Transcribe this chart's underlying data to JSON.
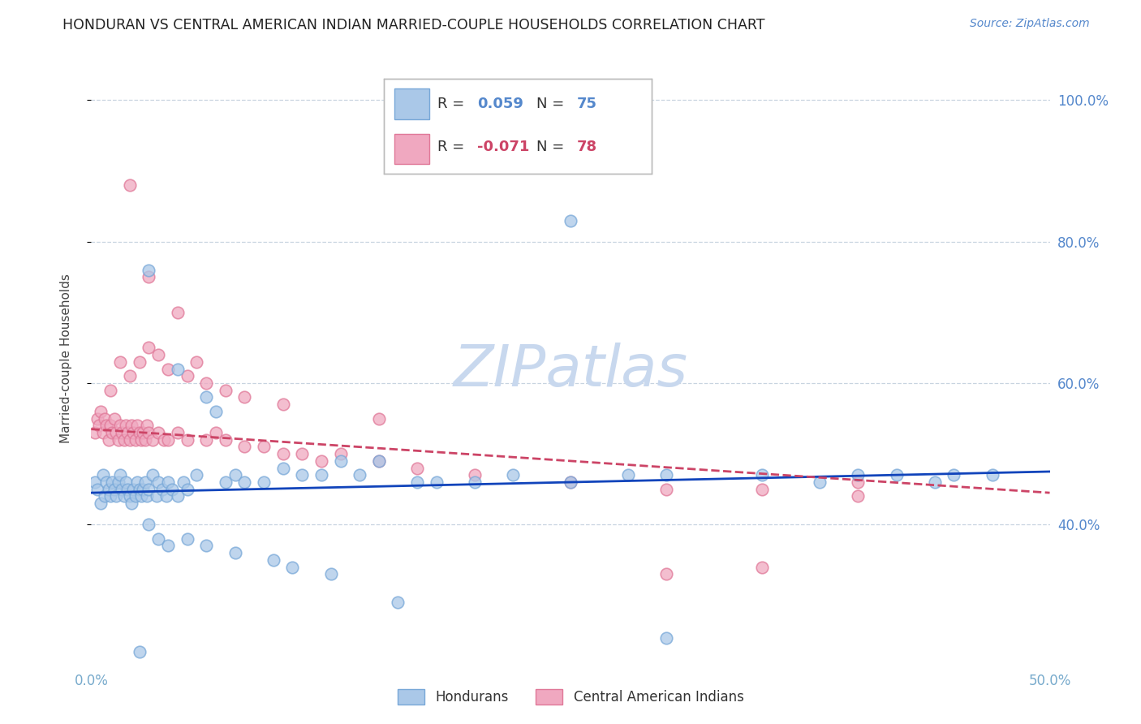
{
  "title": "HONDURAN VS CENTRAL AMERICAN INDIAN MARRIED-COUPLE HOUSEHOLDS CORRELATION CHART",
  "source": "Source: ZipAtlas.com",
  "ylabel": "Married-couple Households",
  "xlim": [
    0.0,
    50.0
  ],
  "ylim": [
    20.0,
    107.0
  ],
  "yticks": [
    40.0,
    60.0,
    80.0,
    100.0
  ],
  "ytick_right_labels": [
    "40.0%",
    "60.0%",
    "80.0%",
    "100.0%"
  ],
  "honduran_color_fill": "#aac8e8",
  "honduran_color_edge": "#78a8d8",
  "cai_color_fill": "#f0a8c0",
  "cai_color_edge": "#e07898",
  "trend_honduran_color": "#1144bb",
  "trend_cai_color": "#cc4466",
  "watermark_color": "#c8d8ee",
  "background_color": "#ffffff",
  "grid_color": "#c8d4e0",
  "axis_label_color": "#77aacc",
  "right_tick_color": "#5588cc",
  "marker_size": 110,
  "honduran_x": [
    0.2,
    0.3,
    0.5,
    0.6,
    0.7,
    0.8,
    0.9,
    1.0,
    1.1,
    1.2,
    1.3,
    1.4,
    1.5,
    1.6,
    1.7,
    1.8,
    1.9,
    2.0,
    2.1,
    2.2,
    2.3,
    2.4,
    2.5,
    2.6,
    2.7,
    2.8,
    2.9,
    3.0,
    3.2,
    3.4,
    3.5,
    3.7,
    3.9,
    4.0,
    4.2,
    4.5,
    4.8,
    5.0,
    5.5,
    6.0,
    6.5,
    7.0,
    7.5,
    8.0,
    9.0,
    10.0,
    11.0,
    12.0,
    13.0,
    14.0,
    15.0,
    17.0,
    18.0,
    20.0,
    22.0,
    25.0,
    28.0,
    30.0,
    35.0,
    38.0,
    40.0,
    42.0,
    44.0,
    45.0,
    47.0,
    3.0,
    3.5,
    4.0,
    5.0,
    6.0,
    7.5,
    9.5,
    10.5,
    12.5,
    16.0
  ],
  "honduran_y": [
    46.0,
    45.0,
    43.0,
    47.0,
    44.0,
    46.0,
    45.0,
    44.0,
    46.0,
    45.0,
    44.0,
    46.0,
    47.0,
    45.0,
    44.0,
    46.0,
    45.0,
    44.0,
    43.0,
    45.0,
    44.0,
    46.0,
    45.0,
    44.0,
    45.0,
    46.0,
    44.0,
    45.0,
    47.0,
    44.0,
    46.0,
    45.0,
    44.0,
    46.0,
    45.0,
    44.0,
    46.0,
    45.0,
    47.0,
    58.0,
    56.0,
    46.0,
    47.0,
    46.0,
    46.0,
    48.0,
    47.0,
    47.0,
    49.0,
    47.0,
    49.0,
    46.0,
    46.0,
    46.0,
    47.0,
    46.0,
    47.0,
    47.0,
    47.0,
    46.0,
    47.0,
    47.0,
    46.0,
    47.0,
    47.0,
    40.0,
    38.0,
    37.0,
    38.0,
    37.0,
    36.0,
    35.0,
    34.0,
    33.0,
    29.0
  ],
  "honduran_y_outliers_x": [
    3.0,
    4.5,
    25.0,
    30.0,
    2.5
  ],
  "honduran_y_outliers_y": [
    76.0,
    62.0,
    83.0,
    24.0,
    22.0
  ],
  "cai_x": [
    0.2,
    0.3,
    0.4,
    0.5,
    0.6,
    0.7,
    0.8,
    0.9,
    1.0,
    1.1,
    1.2,
    1.3,
    1.4,
    1.5,
    1.6,
    1.7,
    1.8,
    1.9,
    2.0,
    2.1,
    2.2,
    2.3,
    2.4,
    2.5,
    2.6,
    2.7,
    2.8,
    2.9,
    3.0,
    3.2,
    3.5,
    3.8,
    4.0,
    4.5,
    5.0,
    5.5,
    6.0,
    6.5,
    7.0,
    8.0,
    9.0,
    10.0,
    11.0,
    12.0,
    13.0,
    15.0,
    17.0,
    20.0,
    25.0,
    30.0,
    35.0,
    40.0,
    1.0,
    1.5,
    2.0,
    2.5,
    3.0,
    3.5,
    4.0,
    5.0,
    6.0,
    7.0,
    8.0,
    10.0,
    15.0
  ],
  "cai_y": [
    53.0,
    55.0,
    54.0,
    56.0,
    53.0,
    55.0,
    54.0,
    52.0,
    54.0,
    53.0,
    55.0,
    53.0,
    52.0,
    54.0,
    53.0,
    52.0,
    54.0,
    53.0,
    52.0,
    54.0,
    53.0,
    52.0,
    54.0,
    53.0,
    52.0,
    53.0,
    52.0,
    54.0,
    53.0,
    52.0,
    53.0,
    52.0,
    52.0,
    53.0,
    52.0,
    63.0,
    52.0,
    53.0,
    52.0,
    51.0,
    51.0,
    50.0,
    50.0,
    49.0,
    50.0,
    49.0,
    48.0,
    47.0,
    46.0,
    45.0,
    45.0,
    44.0,
    59.0,
    63.0,
    61.0,
    63.0,
    65.0,
    64.0,
    62.0,
    61.0,
    60.0,
    59.0,
    58.0,
    57.0,
    55.0
  ],
  "cai_y_outliers_x": [
    2.0,
    3.0,
    4.5,
    30.0,
    35.0,
    40.0
  ],
  "cai_y_outliers_y": [
    88.0,
    75.0,
    70.0,
    33.0,
    34.0,
    46.0
  ],
  "trend_h_x0": 0.0,
  "trend_h_y0": 44.5,
  "trend_h_x1": 50.0,
  "trend_h_y1": 47.5,
  "trend_c_x0": 0.0,
  "trend_c_y0": 53.5,
  "trend_c_x1": 50.0,
  "trend_c_y1": 44.5
}
